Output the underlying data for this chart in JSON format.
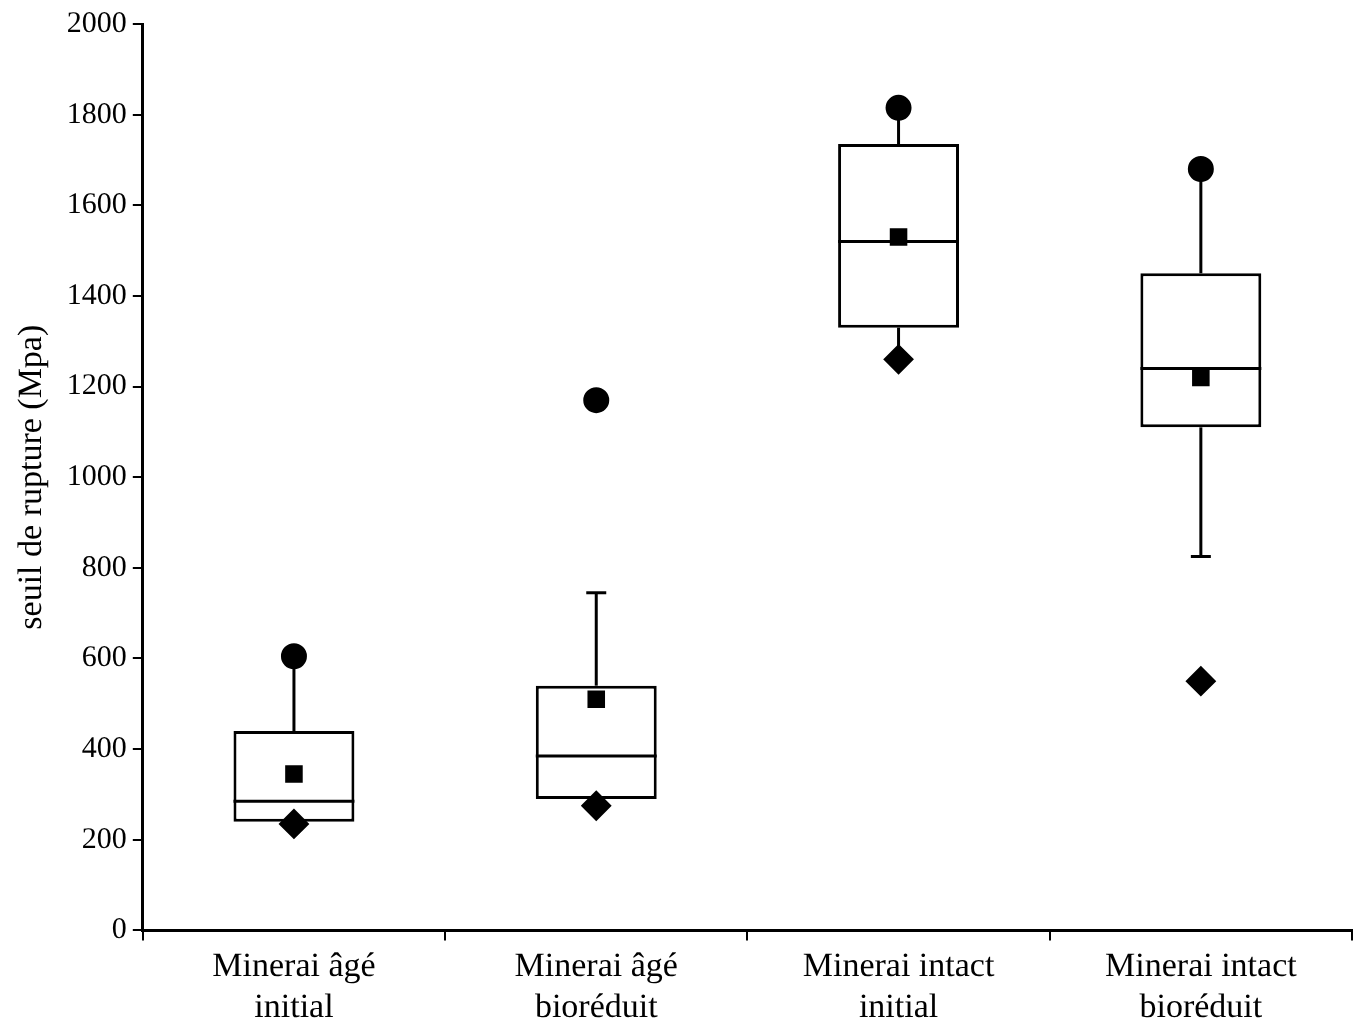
{
  "chart_data": {
    "type": "box",
    "ylabel": "seuil de rupture (Mpa)",
    "categories": [
      "Minerai âgé initial",
      "Minerai âgé bioréduit",
      "Minerai intact initial",
      "Minerai intact bioréduit"
    ],
    "boxes": [
      {
        "low": 240,
        "q1": 240,
        "median": 285,
        "q3": 440,
        "high": 605,
        "mean": 345
      },
      {
        "low": 290,
        "q1": 290,
        "median": 385,
        "q3": 540,
        "high": 745,
        "mean": 510
      },
      {
        "low": 1260,
        "q1": 1330,
        "median": 1520,
        "q3": 1735,
        "high": 1815,
        "mean": 1530
      },
      {
        "low": 825,
        "q1": 1110,
        "median": 1240,
        "q3": 1450,
        "high": 1680,
        "mean": 1220
      }
    ],
    "series": [
      {
        "type": "scatter",
        "marker": "circle",
        "color": "#000000",
        "x": [
          "Minerai âgé initial",
          "Minerai âgé bioréduit",
          "Minerai intact initial",
          "Minerai intact bioréduit"
        ],
        "values": [
          605,
          1170,
          1815,
          1680
        ]
      },
      {
        "type": "scatter",
        "marker": "diamond",
        "color": "#000000",
        "x": [
          "Minerai âgé initial",
          "Minerai âgé bioréduit",
          "Minerai intact initial",
          "Minerai intact bioréduit"
        ],
        "values": [
          235,
          275,
          1260,
          550
        ]
      }
    ],
    "ylim": [
      0,
      2000
    ],
    "yticks": [
      0,
      200,
      400,
      600,
      800,
      1000,
      1200,
      1400,
      1600,
      1800,
      2000
    ],
    "grid": false,
    "legend": false
  }
}
